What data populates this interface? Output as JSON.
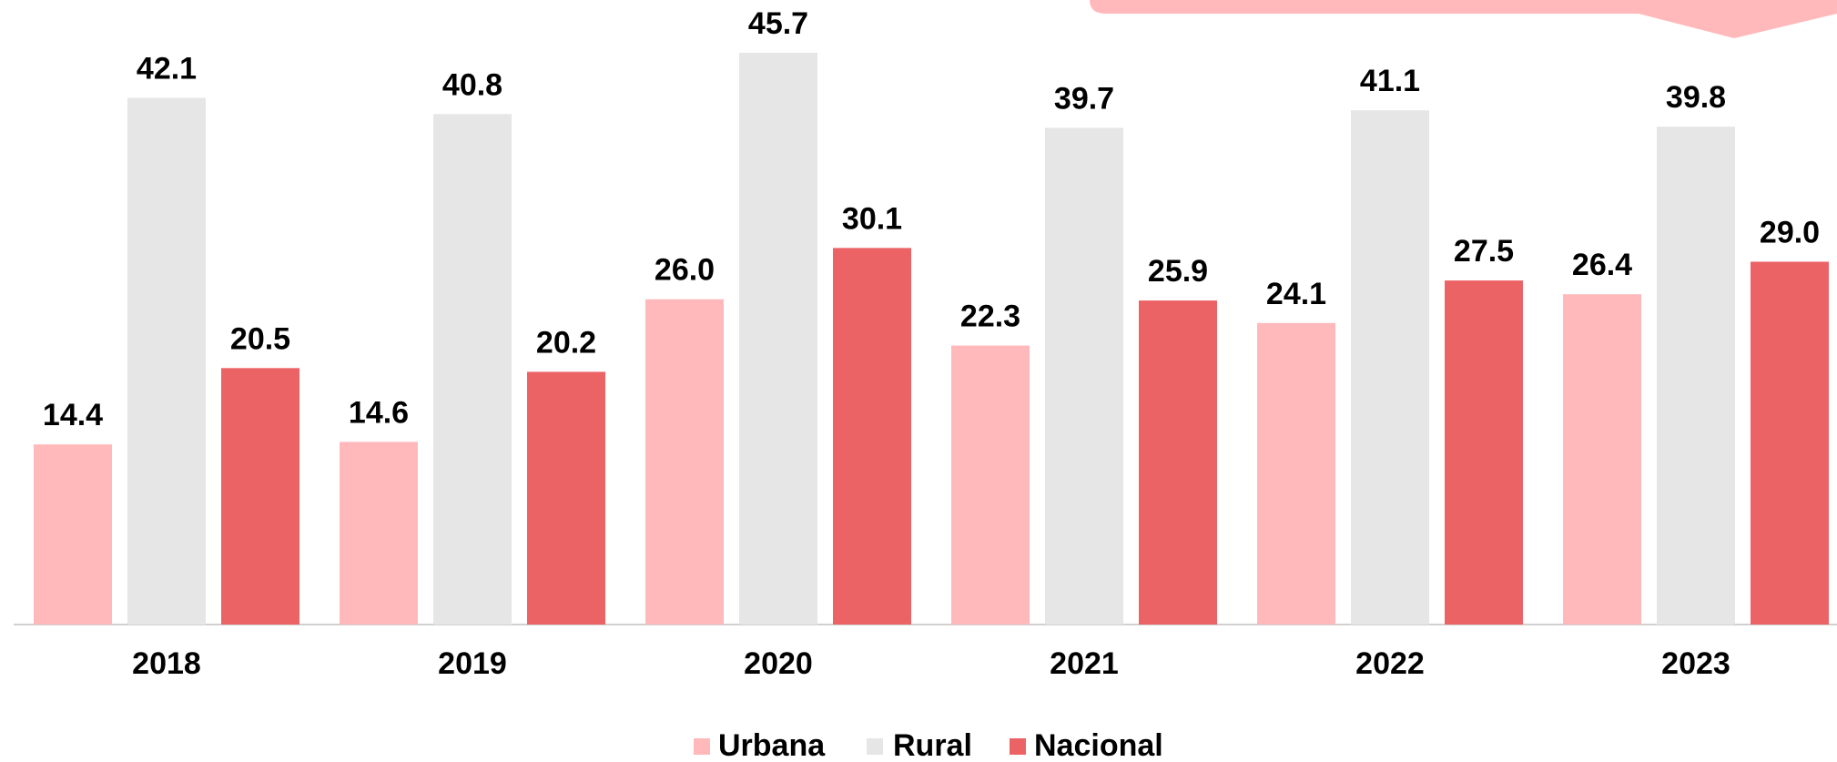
{
  "chart_data": {
    "type": "bar",
    "categories": [
      "2018",
      "2019",
      "2020",
      "2021",
      "2022",
      "2023"
    ],
    "series": [
      {
        "name": "Urbana",
        "color": "#ffb9bb",
        "values": [
          14.4,
          14.6,
          26.0,
          22.3,
          24.1,
          26.4
        ],
        "value_labels": [
          "14.4",
          "14.6",
          "26.0",
          "22.3",
          "24.1",
          "26.4"
        ]
      },
      {
        "name": "Rural",
        "color": "#e6e6e6",
        "values": [
          42.1,
          40.8,
          45.7,
          39.7,
          41.1,
          39.8
        ],
        "value_labels": [
          "42.1",
          "40.8",
          "45.7",
          "39.7",
          "41.1",
          "39.8"
        ]
      },
      {
        "name": "Nacional",
        "color": "#ec6366",
        "values": [
          20.5,
          20.2,
          30.1,
          25.9,
          27.5,
          29.0
        ],
        "value_labels": [
          "20.5",
          "20.2",
          "30.1",
          "25.9",
          "27.5",
          "29.0"
        ]
      }
    ],
    "legend": "bottom"
  }
}
